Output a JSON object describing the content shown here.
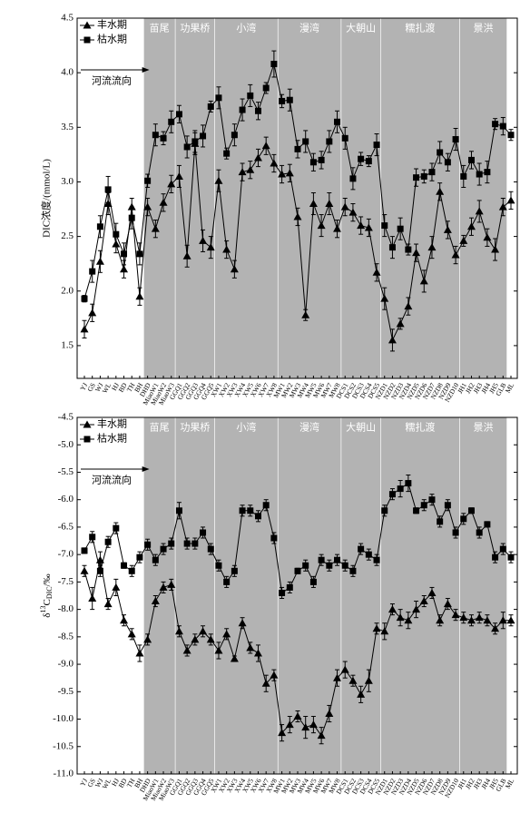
{
  "chart_data": [
    {
      "type": "line",
      "ylabel": "DIC浓度/(mmol/L)",
      "annotation": "河流流向",
      "regions": [
        "苗尾",
        "功果桥",
        "小湾",
        "漫湾",
        "大朝山",
        "糯扎渡",
        "景洪"
      ],
      "categories": [
        "YJ",
        "GS",
        "WJ",
        "WL",
        "HJ",
        "BD",
        "TH",
        "BH",
        "DHD",
        "MiaoW1",
        "MiaoW2",
        "MiaoW3",
        "GGQ1",
        "GGQ2",
        "GGQ3",
        "GGQ4",
        "GGQ5",
        "XW1",
        "XW2",
        "XW3",
        "XW4",
        "XW5",
        "XW6",
        "XW7",
        "XW8",
        "MW1",
        "MW2",
        "MW3",
        "MW4",
        "MW5",
        "MW6",
        "MW7",
        "MW8",
        "DCS1",
        "DCS2",
        "DCS3",
        "DCS4",
        "DCS5",
        "NZD1",
        "NZD2",
        "NZD3",
        "NZD4",
        "NZD5",
        "NZD6",
        "NZD7",
        "NZD8",
        "NZD9",
        "NZD10",
        "JH1",
        "JH2",
        "JH3",
        "JH4",
        "JH5",
        "GLB",
        "ML"
      ],
      "ylim": [
        1.2,
        4.5
      ],
      "yticks": [
        1.5,
        {
          "value": 2,
          "label": "2.0"
        },
        2.5,
        {
          "value": 3,
          "label": "3.0"
        },
        3.5,
        {
          "value": 4,
          "label": "4.0"
        },
        4.5
      ],
      "legend": "upper left",
      "series": [
        {
          "name": "丰水期",
          "marker": "triangle",
          "color": "#000000",
          "values": [
            1.65,
            1.8,
            2.27,
            2.8,
            2.43,
            2.2,
            2.77,
            1.95,
            2.77,
            2.57,
            2.81,
            2.98,
            3.05,
            2.32,
            3.35,
            2.46,
            2.4,
            3.01,
            2.38,
            2.2,
            3.09,
            3.11,
            3.22,
            3.33,
            3.17,
            3.07,
            3.08,
            2.68,
            1.78,
            2.8,
            2.6,
            2.8,
            2.57,
            2.77,
            2.72,
            2.6,
            2.58,
            2.17,
            1.93,
            1.55,
            1.7,
            1.86,
            2.35,
            2.09,
            2.4,
            2.91,
            2.56,
            2.33,
            2.46,
            2.59,
            2.73,
            2.49,
            2.38,
            2.77,
            2.83
          ],
          "errors": [
            0.08,
            0.08,
            0.1,
            0.1,
            0.08,
            0.08,
            0.08,
            0.08,
            0.08,
            0.08,
            0.08,
            0.08,
            0.1,
            0.1,
            0.1,
            0.1,
            0.1,
            0.1,
            0.08,
            0.08,
            0.08,
            0.08,
            0.08,
            0.08,
            0.08,
            0.08,
            0.08,
            0.08,
            0.05,
            0.1,
            0.1,
            0.1,
            0.08,
            0.08,
            0.08,
            0.08,
            0.08,
            0.08,
            0.1,
            0.1,
            0.05,
            0.08,
            0.08,
            0.1,
            0.1,
            0.08,
            0.08,
            0.08,
            0.05,
            0.08,
            0.1,
            0.08,
            0.1,
            0.08,
            0.08
          ]
        },
        {
          "name": "枯水期",
          "marker": "square",
          "color": "#000000",
          "values": [
            1.93,
            2.18,
            2.59,
            2.93,
            2.52,
            2.34,
            2.67,
            2.34,
            3.01,
            3.43,
            3.4,
            3.55,
            3.62,
            3.32,
            3.37,
            3.42,
            3.69,
            3.77,
            3.26,
            3.43,
            3.66,
            3.79,
            3.65,
            3.86,
            4.08,
            3.74,
            3.75,
            3.3,
            3.37,
            3.18,
            3.2,
            3.37,
            3.55,
            3.4,
            3.03,
            3.21,
            3.19,
            3.34,
            2.6,
            2.4,
            2.57,
            2.38,
            3.04,
            3.05,
            3.09,
            3.27,
            3.18,
            3.39,
            3.05,
            3.2,
            3.07,
            3.09,
            3.53,
            3.51,
            3.43
          ],
          "errors": [
            0.03,
            0.1,
            0.1,
            0.12,
            0.1,
            0.1,
            0.1,
            0.1,
            0.06,
            0.1,
            0.06,
            0.1,
            0.08,
            0.1,
            0.1,
            0.1,
            0.05,
            0.1,
            0.05,
            0.1,
            0.1,
            0.1,
            0.08,
            0.05,
            0.12,
            0.06,
            0.1,
            0.08,
            0.1,
            0.08,
            0.08,
            0.1,
            0.1,
            0.1,
            0.1,
            0.06,
            0.05,
            0.1,
            0.1,
            0.1,
            0.1,
            0.05,
            0.08,
            0.06,
            0.08,
            0.1,
            0.08,
            0.1,
            0.1,
            0.08,
            0.1,
            0.1,
            0.05,
            0.08,
            0.05
          ]
        }
      ]
    },
    {
      "type": "line",
      "ylabel_parts": [
        "δ",
        "13",
        "C",
        "DIC",
        "/‰"
      ],
      "annotation": "河流流向",
      "regions": [
        "苗尾",
        "功果桥",
        "小湾",
        "漫湾",
        "大朝山",
        "糯扎渡",
        "景洪"
      ],
      "categories": [
        "YJ",
        "GS",
        "WJ",
        "WL",
        "HJ",
        "BD",
        "TH",
        "BH",
        "DHD",
        "MiaoW1",
        "MiaoW2",
        "MiaoW3",
        "GGQ1",
        "GGQ2",
        "GGQ3",
        "GGQ4",
        "GGQ5",
        "XW1",
        "XW2",
        "XW3",
        "XW4",
        "XW5",
        "XW6",
        "XW7",
        "XW8",
        "MW1",
        "MW2",
        "MW3",
        "MW4",
        "MW5",
        "MW6",
        "MW7",
        "MW8",
        "DCS1",
        "DCS2",
        "DCS3",
        "DCS4",
        "DCS5",
        "NZD1",
        "NZD2",
        "NZD3",
        "NZD4",
        "NZD5",
        "NZD6",
        "NZD7",
        "NZD8",
        "NZD9",
        "NZD10",
        "JH1",
        "JH2",
        "JH3",
        "JH4",
        "JH5",
        "GLB",
        "ML"
      ],
      "ylim": [
        -11,
        -4.5
      ],
      "yticks": [
        {
          "value": -11,
          "label": "-11.0"
        },
        -10.5,
        {
          "value": -10,
          "label": "-10.0"
        },
        -9.5,
        {
          "value": -9,
          "label": "-9.0"
        },
        -8.5,
        {
          "value": -8,
          "label": "-8.0"
        },
        -7.5,
        {
          "value": -7,
          "label": "-7.0"
        },
        -6.5,
        {
          "value": -6,
          "label": "-6.0"
        },
        -5.5,
        {
          "value": -5,
          "label": "-5.0"
        },
        -4.5
      ],
      "legend": "upper left",
      "series": [
        {
          "name": "丰水期",
          "marker": "triangle",
          "color": "#000000",
          "values": [
            -7.3,
            -7.8,
            -7.1,
            -7.9,
            -7.6,
            -8.2,
            -8.45,
            -8.8,
            -8.55,
            -7.85,
            -7.6,
            -7.55,
            -8.4,
            -8.75,
            -8.55,
            -8.4,
            -8.55,
            -8.75,
            -8.45,
            -8.9,
            -8.25,
            -8.7,
            -8.8,
            -9.35,
            -9.2,
            -10.25,
            -10.1,
            -9.95,
            -10.15,
            -10.1,
            -10.3,
            -9.9,
            -9.25,
            -9.1,
            -9.3,
            -9.55,
            -9.3,
            -8.35,
            -8.4,
            -8.0,
            -8.15,
            -8.2,
            -8.0,
            -7.85,
            -7.7,
            -8.2,
            -7.9,
            -8.1,
            -8.15,
            -8.2,
            -8.15,
            -8.2,
            -8.35,
            -8.2,
            -8.2
          ],
          "errors": [
            0.1,
            0.2,
            0.15,
            0.1,
            0.15,
            0.1,
            0.1,
            0.15,
            0.1,
            0.1,
            0.1,
            0.1,
            0.1,
            0.1,
            0.1,
            0.1,
            0.1,
            0.15,
            0.1,
            0.05,
            0.1,
            0.1,
            0.15,
            0.15,
            0.1,
            0.15,
            0.15,
            0.1,
            0.2,
            0.15,
            0.15,
            0.15,
            0.15,
            0.15,
            0.1,
            0.15,
            0.2,
            0.1,
            0.15,
            0.1,
            0.15,
            0.15,
            0.15,
            0.1,
            0.1,
            0.1,
            0.1,
            0.1,
            0.1,
            0.1,
            0.1,
            0.1,
            0.1,
            0.15,
            0.1
          ]
        },
        {
          "name": "枯水期",
          "marker": "square",
          "color": "#000000",
          "values": [
            -6.93,
            -6.68,
            -7.3,
            -6.77,
            -6.52,
            -7.2,
            -7.3,
            -7.05,
            -6.82,
            -7.1,
            -6.9,
            -6.8,
            -6.2,
            -6.8,
            -6.8,
            -6.6,
            -6.9,
            -7.2,
            -7.5,
            -7.3,
            -6.2,
            -6.2,
            -6.3,
            -6.1,
            -6.7,
            -7.7,
            -7.6,
            -7.3,
            -7.2,
            -7.5,
            -7.1,
            -7.2,
            -7.1,
            -7.2,
            -7.3,
            -6.9,
            -7.0,
            -7.1,
            -6.2,
            -5.9,
            -5.8,
            -5.7,
            -6.2,
            -6.1,
            -6.0,
            -6.4,
            -6.1,
            -6.6,
            -6.35,
            -6.2,
            -6.6,
            -6.45,
            -7.05,
            -6.9,
            -7.05
          ],
          "errors": [
            0.05,
            0.1,
            0.1,
            0.1,
            0.1,
            0.05,
            0.1,
            0.1,
            0.1,
            0.1,
            0.1,
            0.1,
            0.15,
            0.1,
            0.1,
            0.1,
            0.1,
            0.1,
            0.1,
            0.1,
            0.1,
            0.1,
            0.1,
            0.1,
            0.1,
            0.1,
            0.1,
            0.05,
            0.1,
            0.1,
            0.1,
            0.1,
            0.1,
            0.1,
            0.1,
            0.1,
            0.1,
            0.1,
            0.1,
            0.1,
            0.15,
            0.15,
            0.05,
            0.1,
            0.1,
            0.1,
            0.1,
            0.1,
            0.1,
            0.05,
            0.1,
            0.05,
            0.1,
            0.1,
            0.1
          ]
        }
      ]
    }
  ]
}
